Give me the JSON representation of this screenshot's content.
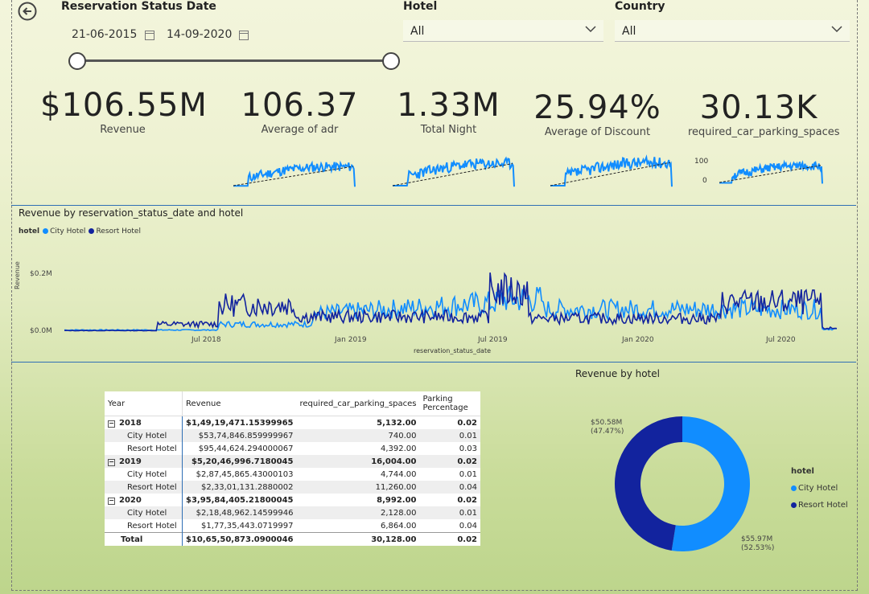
{
  "filters": {
    "date_title": "Reservation Status Date",
    "start_date": "21-06-2015",
    "end_date": "14-09-2020",
    "hotel_label": "Hotel",
    "hotel_value": "All",
    "country_label": "Country",
    "country_value": "All"
  },
  "kpis": [
    {
      "value": "$106.55M",
      "label": "Revenue"
    },
    {
      "value": "106.37",
      "label": "Average of adr"
    },
    {
      "value": "1.33M",
      "label": "Total Night"
    },
    {
      "value": "25.94%",
      "label": "Average of Discount"
    },
    {
      "value": "30.13K",
      "label": "required_car_parking_spaces"
    }
  ],
  "spark_axis": {
    "top": "100",
    "bottom": "0"
  },
  "line_chart": {
    "title": "Revenue by reservation_status_date and hotel",
    "legend_title": "hotel",
    "ylabel": "Revenue",
    "xlabel": "reservation_status_date",
    "yticks": [
      "$0.2M",
      "$0.0M"
    ],
    "xticks": [
      "Jul 2018",
      "Jan 2019",
      "Jul 2019",
      "Jan 2020",
      "Jul 2020"
    ]
  },
  "matrix": {
    "headers": [
      "Year",
      "Revenue",
      "required_car_parking_spaces",
      "Parking Percentage"
    ],
    "rows": [
      {
        "kind": "year",
        "label": "2018",
        "revenue": "$1,49,19,471.15399965",
        "parking": "5,132.00",
        "pct": "0.02"
      },
      {
        "kind": "hotel",
        "label": "City Hotel",
        "revenue": "$53,74,846.859999967",
        "parking": "740.00",
        "pct": "0.01"
      },
      {
        "kind": "hotel",
        "label": "Resort Hotel",
        "revenue": "$95,44,624.294000067",
        "parking": "4,392.00",
        "pct": "0.03"
      },
      {
        "kind": "year",
        "label": "2019",
        "revenue": "$5,20,46,996.7180045",
        "parking": "16,004.00",
        "pct": "0.02"
      },
      {
        "kind": "hotel",
        "label": "City Hotel",
        "revenue": "$2,87,45,865.43000103",
        "parking": "4,744.00",
        "pct": "0.01"
      },
      {
        "kind": "hotel",
        "label": "Resort Hotel",
        "revenue": "$2,33,01,131.2880002",
        "parking": "11,260.00",
        "pct": "0.04"
      },
      {
        "kind": "year",
        "label": "2020",
        "revenue": "$3,95,84,405.21800045",
        "parking": "8,992.00",
        "pct": "0.02"
      },
      {
        "kind": "hotel",
        "label": "City Hotel",
        "revenue": "$2,18,48,962.14599946",
        "parking": "2,128.00",
        "pct": "0.01"
      },
      {
        "kind": "hotel",
        "label": "Resort Hotel",
        "revenue": "$1,77,35,443.0719997",
        "parking": "6,864.00",
        "pct": "0.04"
      },
      {
        "kind": "total",
        "label": "Total",
        "revenue": "$10,65,50,873.0900046",
        "parking": "30,128.00",
        "pct": "0.02"
      }
    ]
  },
  "donut": {
    "title": "Revenue by hotel",
    "legend_title": "hotel",
    "slices": [
      {
        "name": "City Hotel",
        "value_label": "$55.97M",
        "pct_label": "(52.53%)",
        "pct": 52.53,
        "color": "#118dff"
      },
      {
        "name": "Resort Hotel",
        "value_label": "$50.58M",
        "pct_label": "(47.47%)",
        "pct": 47.47,
        "color": "#12239e"
      }
    ]
  },
  "colors": {
    "city": "#118dff",
    "resort": "#12239e"
  }
}
